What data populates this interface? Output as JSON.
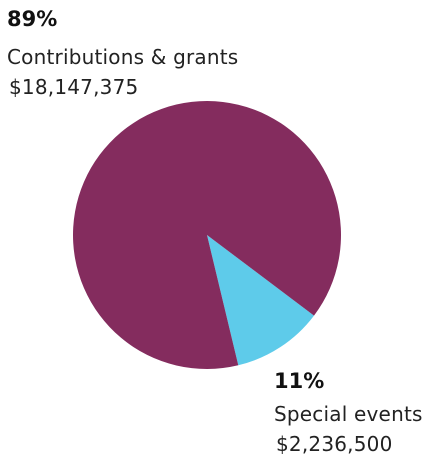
{
  "chart_data": {
    "type": "pie",
    "title": "",
    "slices": [
      {
        "label": "Contributions & grants",
        "percent_label": "89%",
        "amount": "$18,147,375",
        "value": 18147375,
        "color": "#842c5e"
      },
      {
        "label": "Special events",
        "percent_label": "11%",
        "amount": "$2,236,500",
        "value": 2236500,
        "color": "#5ecbea"
      }
    ],
    "legend": "none"
  }
}
